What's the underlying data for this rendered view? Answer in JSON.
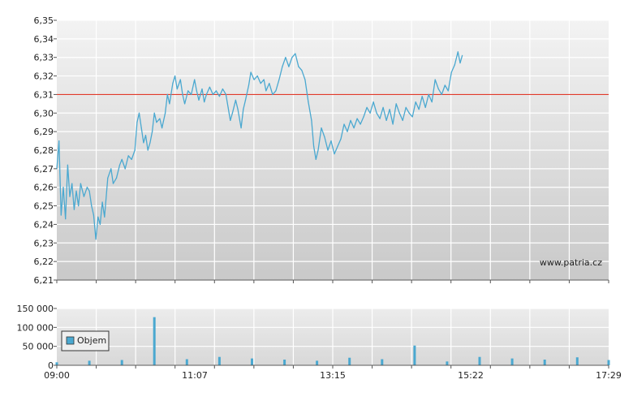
{
  "colors": {
    "line": "#4aa8d0",
    "reference": "#e03a2a",
    "volume": "#4aa8d0",
    "grid": "#ffffff",
    "bg_top": "#f3f3f3",
    "bg_bottom": "#c9c9c9"
  },
  "chart_data": [
    {
      "type": "line",
      "title": "",
      "xlabel": "",
      "ylabel": "",
      "ylim": [
        6.21,
        6.35
      ],
      "yticks": [
        "6,35",
        "6,34",
        "6,33",
        "6,32",
        "6,31",
        "6,30",
        "6,29",
        "6,28",
        "6,27",
        "6,26",
        "6,25",
        "6,24",
        "6,23",
        "6,22",
        "6,21"
      ],
      "reference_line": 6.31,
      "watermark": "www.patria.cz",
      "grid": true,
      "x_range": [
        "09:00",
        "17:29"
      ],
      "series": [
        {
          "points": [
            [
              "09:00",
              6.27
            ],
            [
              "09:02",
              6.285
            ],
            [
              "09:04",
              6.245
            ],
            [
              "09:06",
              6.26
            ],
            [
              "09:08",
              6.243
            ],
            [
              "09:10",
              6.272
            ],
            [
              "09:12",
              6.255
            ],
            [
              "09:14",
              6.262
            ],
            [
              "09:16",
              6.248
            ],
            [
              "09:18",
              6.258
            ],
            [
              "09:20",
              6.25
            ],
            [
              "09:22",
              6.262
            ],
            [
              "09:25",
              6.255
            ],
            [
              "09:28",
              6.26
            ],
            [
              "09:30",
              6.258
            ],
            [
              "09:32",
              6.25
            ],
            [
              "09:34",
              6.245
            ],
            [
              "09:36",
              6.232
            ],
            [
              "09:38",
              6.244
            ],
            [
              "09:40",
              6.24
            ],
            [
              "09:42",
              6.252
            ],
            [
              "09:44",
              6.244
            ],
            [
              "09:47",
              6.265
            ],
            [
              "09:50",
              6.27
            ],
            [
              "09:52",
              6.262
            ],
            [
              "09:55",
              6.265
            ],
            [
              "09:58",
              6.272
            ],
            [
              "10:00",
              6.275
            ],
            [
              "10:03",
              6.27
            ],
            [
              "10:06",
              6.277
            ],
            [
              "10:09",
              6.275
            ],
            [
              "10:12",
              6.28
            ],
            [
              "10:14",
              6.295
            ],
            [
              "10:16",
              6.3
            ],
            [
              "10:18",
              6.292
            ],
            [
              "10:20",
              6.284
            ],
            [
              "10:22",
              6.288
            ],
            [
              "10:24",
              6.28
            ],
            [
              "10:26",
              6.284
            ],
            [
              "10:28",
              6.29
            ],
            [
              "10:30",
              6.3
            ],
            [
              "10:32",
              6.295
            ],
            [
              "10:35",
              6.297
            ],
            [
              "10:37",
              6.292
            ],
            [
              "10:40",
              6.3
            ],
            [
              "10:42",
              6.31
            ],
            [
              "10:44",
              6.305
            ],
            [
              "10:47",
              6.316
            ],
            [
              "10:49",
              6.32
            ],
            [
              "10:51",
              6.313
            ],
            [
              "10:54",
              6.318
            ],
            [
              "10:56",
              6.31
            ],
            [
              "10:58",
              6.305
            ],
            [
              "11:01",
              6.312
            ],
            [
              "11:04",
              6.31
            ],
            [
              "11:07",
              6.318
            ],
            [
              "11:09",
              6.312
            ],
            [
              "11:11",
              6.307
            ],
            [
              "11:14",
              6.313
            ],
            [
              "11:16",
              6.306
            ],
            [
              "11:18",
              6.31
            ],
            [
              "11:21",
              6.314
            ],
            [
              "11:24",
              6.31
            ],
            [
              "11:27",
              6.312
            ],
            [
              "11:30",
              6.309
            ],
            [
              "11:33",
              6.313
            ],
            [
              "11:36",
              6.31
            ],
            [
              "11:38",
              6.303
            ],
            [
              "11:40",
              6.296
            ],
            [
              "11:42",
              6.3
            ],
            [
              "11:45",
              6.307
            ],
            [
              "11:47",
              6.302
            ],
            [
              "11:50",
              6.292
            ],
            [
              "11:52",
              6.302
            ],
            [
              "11:54",
              6.307
            ],
            [
              "11:57",
              6.315
            ],
            [
              "11:59",
              6.322
            ],
            [
              "12:02",
              6.318
            ],
            [
              "12:05",
              6.32
            ],
            [
              "12:08",
              6.316
            ],
            [
              "12:11",
              6.318
            ],
            [
              "12:13",
              6.312
            ],
            [
              "12:16",
              6.316
            ],
            [
              "12:19",
              6.31
            ],
            [
              "12:22",
              6.312
            ],
            [
              "12:25",
              6.318
            ],
            [
              "12:28",
              6.325
            ],
            [
              "12:31",
              6.33
            ],
            [
              "12:34",
              6.325
            ],
            [
              "12:37",
              6.33
            ],
            [
              "12:40",
              6.332
            ],
            [
              "12:43",
              6.325
            ],
            [
              "12:46",
              6.323
            ],
            [
              "12:49",
              6.318
            ],
            [
              "12:52",
              6.306
            ],
            [
              "12:55",
              6.296
            ],
            [
              "12:57",
              6.282
            ],
            [
              "12:59",
              6.275
            ],
            [
              "13:01",
              6.28
            ],
            [
              "13:04",
              6.292
            ],
            [
              "13:07",
              6.287
            ],
            [
              "13:10",
              6.28
            ],
            [
              "13:13",
              6.285
            ],
            [
              "13:16",
              6.278
            ],
            [
              "13:19",
              6.282
            ],
            [
              "13:22",
              6.286
            ],
            [
              "13:25",
              6.294
            ],
            [
              "13:28",
              6.29
            ],
            [
              "13:31",
              6.296
            ],
            [
              "13:34",
              6.292
            ],
            [
              "13:37",
              6.297
            ],
            [
              "13:40",
              6.294
            ],
            [
              "13:43",
              6.298
            ],
            [
              "13:46",
              6.303
            ],
            [
              "13:49",
              6.3
            ],
            [
              "13:52",
              6.306
            ],
            [
              "13:55",
              6.3
            ],
            [
              "13:58",
              6.297
            ],
            [
              "14:01",
              6.303
            ],
            [
              "14:04",
              6.296
            ],
            [
              "14:07",
              6.302
            ],
            [
              "14:10",
              6.294
            ],
            [
              "14:13",
              6.305
            ],
            [
              "14:16",
              6.3
            ],
            [
              "14:19",
              6.296
            ],
            [
              "14:22",
              6.303
            ],
            [
              "14:25",
              6.3
            ],
            [
              "14:28",
              6.298
            ],
            [
              "14:31",
              6.306
            ],
            [
              "14:34",
              6.302
            ],
            [
              "14:37",
              6.309
            ],
            [
              "14:40",
              6.303
            ],
            [
              "14:43",
              6.31
            ],
            [
              "14:46",
              6.306
            ],
            [
              "14:49",
              6.318
            ],
            [
              "14:52",
              6.313
            ],
            [
              "14:55",
              6.31
            ],
            [
              "14:58",
              6.315
            ],
            [
              "15:01",
              6.312
            ],
            [
              "15:04",
              6.322
            ],
            [
              "15:07",
              6.326
            ],
            [
              "15:10",
              6.333
            ],
            [
              "15:12",
              6.327
            ],
            [
              "15:14",
              6.331
            ]
          ]
        }
      ]
    },
    {
      "type": "bar",
      "title": "",
      "xlabel": "",
      "ylabel": "",
      "ylim": [
        0,
        150000
      ],
      "yticks": [
        "150 000",
        "100 000",
        "50 000",
        "0"
      ],
      "legend": {
        "label": "Objem",
        "placement": "left"
      },
      "grid": true,
      "categories": [
        "09:00",
        "09:30",
        "10:00",
        "10:30",
        "11:00",
        "11:30",
        "12:00",
        "12:30",
        "13:00",
        "13:30",
        "14:00",
        "14:30",
        "15:00",
        "15:30",
        "16:00",
        "16:30",
        "17:00",
        "17:29"
      ],
      "values": [
        8000,
        12000,
        14000,
        127000,
        16000,
        22000,
        18000,
        15000,
        12000,
        20000,
        16000,
        52000,
        10000,
        22000,
        18000,
        15000,
        21000,
        14000
      ],
      "x_tick_labels": [
        "09:00",
        "11:07",
        "13:15",
        "15:22",
        "17:29"
      ]
    }
  ]
}
